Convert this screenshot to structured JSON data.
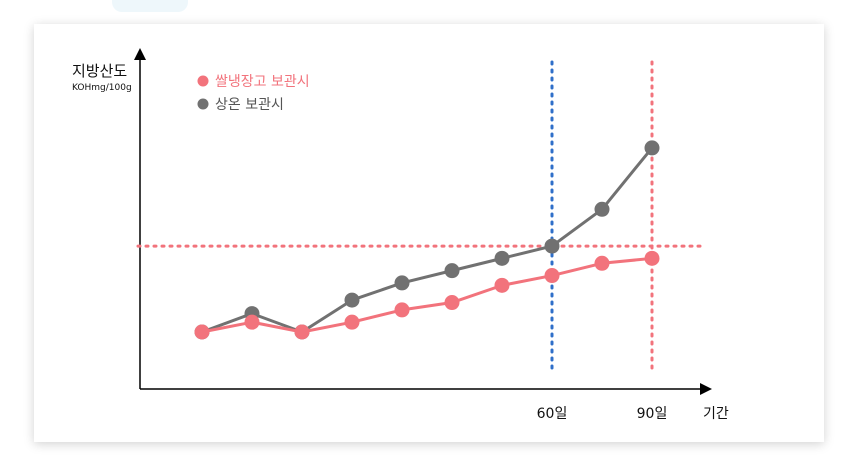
{
  "chart_data": {
    "type": "line",
    "ylabel": "지방산도",
    "yunit": "KOHmg/100g",
    "xlabel": "기간",
    "x": [
      1,
      2,
      3,
      4,
      5,
      6,
      7,
      8,
      9,
      10
    ],
    "x_tick_labels": [
      {
        "x": 8,
        "label": "60일"
      },
      {
        "x": 10,
        "label": "90일"
      }
    ],
    "series": [
      {
        "name": "쌀냉장고 보관시",
        "color": "#f2737c",
        "values": [
          0,
          0.4,
          0,
          0.4,
          0.9,
          1.2,
          1.9,
          2.3,
          2.8,
          3.0
        ]
      },
      {
        "name": "상온 보관시",
        "color": "#717171",
        "values": [
          0,
          0.75,
          0,
          1.3,
          2.0,
          2.5,
          3.0,
          3.5,
          5.0,
          7.5
        ]
      }
    ],
    "reference_lines": [
      {
        "axis": "y",
        "value": 3.5,
        "color": "#f2737c",
        "style": "dotted"
      },
      {
        "axis": "x",
        "value": 8,
        "color": "#2f6fc9",
        "style": "dotted"
      },
      {
        "axis": "x",
        "value": 10,
        "color": "#f2737c",
        "style": "dotted"
      }
    ],
    "ylim": [
      -1,
      11
    ],
    "legend_position": "top-left",
    "grid": false
  }
}
